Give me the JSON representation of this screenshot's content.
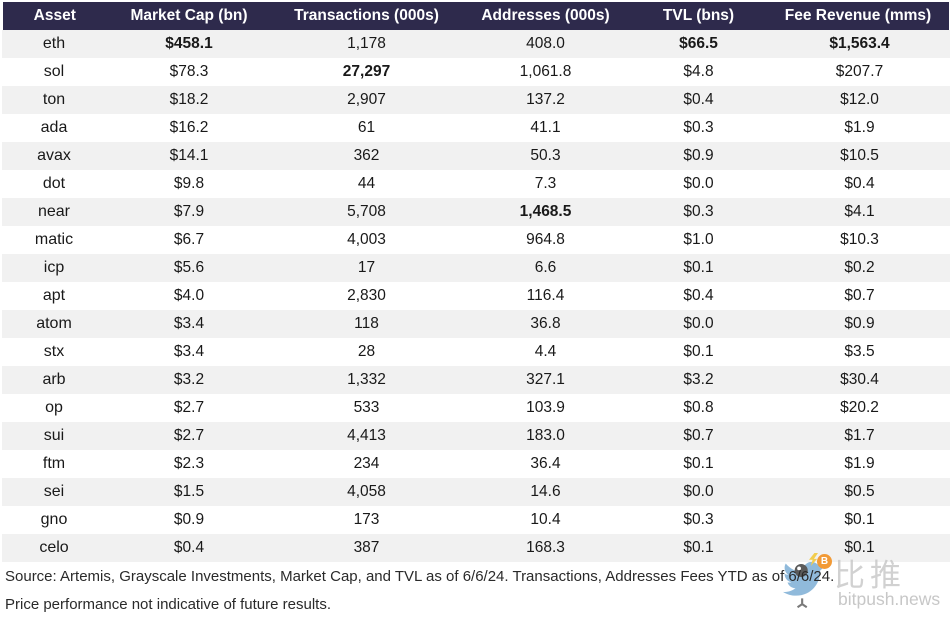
{
  "chart_data": {
    "type": "table",
    "columns": [
      "Asset",
      "Market Cap (bn)",
      "Transactions (000s)",
      "Addresses (000s)",
      "TVL (bns)",
      "Fee Revenue (mms)"
    ],
    "rows": [
      [
        "eth",
        "$458.1",
        "1,178",
        "408.0",
        "$66.5",
        "$1,563.4"
      ],
      [
        "sol",
        "$78.3",
        "27,297",
        "1,061.8",
        "$4.8",
        "$207.7"
      ],
      [
        "ton",
        "$18.2",
        "2,907",
        "137.2",
        "$0.4",
        "$12.0"
      ],
      [
        "ada",
        "$16.2",
        "61",
        "41.1",
        "$0.3",
        "$1.9"
      ],
      [
        "avax",
        "$14.1",
        "362",
        "50.3",
        "$0.9",
        "$10.5"
      ],
      [
        "dot",
        "$9.8",
        "44",
        "7.3",
        "$0.0",
        "$0.4"
      ],
      [
        "near",
        "$7.9",
        "5,708",
        "1,468.5",
        "$0.3",
        "$4.1"
      ],
      [
        "matic",
        "$6.7",
        "4,003",
        "964.8",
        "$1.0",
        "$10.3"
      ],
      [
        "icp",
        "$5.6",
        "17",
        "6.6",
        "$0.1",
        "$0.2"
      ],
      [
        "apt",
        "$4.0",
        "2,830",
        "116.4",
        "$0.4",
        "$0.7"
      ],
      [
        "atom",
        "$3.4",
        "118",
        "36.8",
        "$0.0",
        "$0.9"
      ],
      [
        "stx",
        "$3.4",
        "28",
        "4.4",
        "$0.1",
        "$3.5"
      ],
      [
        "arb",
        "$3.2",
        "1,332",
        "327.1",
        "$3.2",
        "$30.4"
      ],
      [
        "op",
        "$2.7",
        "533",
        "103.9",
        "$0.8",
        "$20.2"
      ],
      [
        "sui",
        "$2.7",
        "4,413",
        "183.0",
        "$0.7",
        "$1.7"
      ],
      [
        "ftm",
        "$2.3",
        "234",
        "36.4",
        "$0.1",
        "$1.9"
      ],
      [
        "sei",
        "$1.5",
        "4,058",
        "14.6",
        "$0.0",
        "$0.5"
      ],
      [
        "gno",
        "$0.9",
        "173",
        "10.4",
        "$0.3",
        "$0.1"
      ],
      [
        "celo",
        "$0.4",
        "387",
        "168.3",
        "$0.1",
        "$0.1"
      ]
    ],
    "bold_cells": {
      "0": [
        1,
        4,
        5
      ],
      "1": [
        2
      ],
      "6": [
        3
      ]
    },
    "layout": {
      "header_bg": "#2e2a4c",
      "alt_row_bg": "#f1f1f1",
      "row_bg": "#ffffff",
      "header_text": "#ffffff"
    }
  },
  "footer": {
    "line1": "Source: Artemis, Grayscale Investments, Market Cap, and TVL as of 6/6/24. Transactions, Addresses Fees YTD as of 6/6/24.",
    "line2": "Price performance not indicative of future results."
  },
  "watermark": {
    "brand_cn": "比推",
    "brand_en": "bitpush.news",
    "bitcoin_symbol": "B",
    "icons": [
      "bird-icon",
      "bitcoin-icon",
      "spark-icon"
    ],
    "colors": {
      "bird_blue": "#8ab6d9",
      "bitcoin_orange": "#f29a36",
      "gray": "#c9c9c9"
    }
  }
}
